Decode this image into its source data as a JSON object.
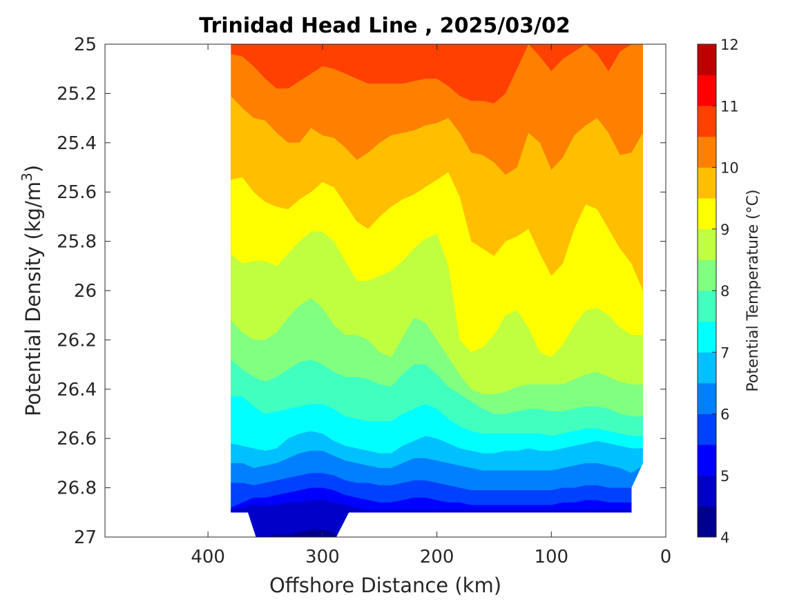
{
  "chart_data": {
    "type": "contour",
    "title": "Trinidad Head Line , 2025/03/02",
    "xlabel": "Offshore Distance (km)",
    "ylabel": "Potential Density (kg/m",
    "ylabel_sup": "3",
    "ylabel_end": ")",
    "xlim": [
      490,
      0
    ],
    "x_reversed": true,
    "ylim": [
      25,
      27
    ],
    "y_reversed": true,
    "xticks": [
      400,
      300,
      200,
      100,
      0
    ],
    "yticks": [
      25,
      25.2,
      25.4,
      25.6,
      25.8,
      26,
      26.2,
      26.4,
      26.6,
      26.8,
      27
    ],
    "xtick_labels": [
      "400",
      "300",
      "200",
      "100",
      "0"
    ],
    "ytick_labels": [
      "25",
      "25.2",
      "25.4",
      "25.6",
      "25.8",
      "26",
      "26.2",
      "26.4",
      "26.6",
      "26.8",
      "27"
    ],
    "colorbar": {
      "label": "Potential Temperature (°C)",
      "range": [
        4,
        12
      ],
      "step": 0.5,
      "tick_values": [
        4,
        5,
        6,
        7,
        8,
        9,
        10,
        11,
        12
      ],
      "tick_labels": [
        "4",
        "5",
        "6",
        "7",
        "8",
        "9",
        "10",
        "11",
        "12"
      ],
      "colors": [
        "#00008f",
        "#0000c8",
        "#0000ff",
        "#0040ff",
        "#0080ff",
        "#00c0ff",
        "#00ffff",
        "#40ffbf",
        "#80ff80",
        "#c0ff40",
        "#ffff00",
        "#ffbf00",
        "#ff8000",
        "#ff4000",
        "#ff0000",
        "#bf0000"
      ]
    },
    "x": [
      380,
      370,
      360,
      350,
      340,
      330,
      320,
      310,
      300,
      290,
      280,
      270,
      260,
      250,
      240,
      230,
      220,
      210,
      200,
      190,
      180,
      170,
      160,
      150,
      140,
      130,
      120,
      110,
      100,
      90,
      80,
      70,
      60,
      50,
      40,
      30,
      20
    ],
    "isotherms": [
      {
        "temp": 10.5,
        "depth": [
          25.04,
          25.05,
          25.09,
          25.14,
          25.18,
          25.18,
          25.15,
          25.12,
          25.09,
          25.1,
          25.12,
          25.14,
          25.16,
          25.16,
          25.16,
          25.16,
          25.15,
          25.14,
          25.14,
          25.17,
          25.21,
          25.23,
          25.23,
          25.24,
          25.2,
          25.1,
          25.0,
          25.05,
          25.11,
          25.06,
          25.03,
          25.0,
          25.04,
          25.11,
          25.03,
          25.0,
          25.0
        ]
      },
      {
        "temp": 10.0,
        "depth": [
          25.21,
          25.26,
          25.3,
          25.31,
          25.36,
          25.4,
          25.4,
          25.34,
          25.37,
          25.38,
          25.42,
          25.47,
          25.44,
          25.4,
          25.37,
          25.36,
          25.35,
          25.33,
          25.32,
          25.3,
          25.36,
          25.44,
          25.45,
          25.48,
          25.53,
          25.5,
          25.36,
          25.4,
          25.51,
          25.46,
          25.37,
          25.33,
          25.3,
          25.36,
          25.45,
          25.44,
          25.36
        ]
      },
      {
        "temp": 9.5,
        "depth": [
          25.55,
          25.54,
          25.6,
          25.64,
          25.66,
          25.67,
          25.63,
          25.6,
          25.56,
          25.58,
          25.65,
          25.72,
          25.75,
          25.7,
          25.66,
          25.63,
          25.61,
          25.58,
          25.55,
          25.52,
          25.62,
          25.8,
          25.83,
          25.86,
          25.8,
          25.78,
          25.75,
          25.85,
          25.94,
          25.89,
          25.75,
          25.65,
          25.67,
          25.75,
          25.83,
          25.89,
          26.0
        ]
      },
      {
        "temp": 9.0,
        "depth": [
          25.85,
          25.89,
          25.88,
          25.88,
          25.9,
          25.85,
          25.8,
          25.76,
          25.76,
          25.8,
          25.88,
          25.96,
          25.96,
          25.94,
          25.92,
          25.88,
          25.83,
          25.79,
          25.77,
          25.9,
          26.2,
          26.25,
          26.23,
          26.18,
          26.1,
          26.08,
          26.15,
          26.25,
          26.27,
          26.22,
          26.14,
          26.08,
          26.07,
          26.1,
          26.15,
          26.18,
          26.18
        ]
      },
      {
        "temp": 8.5,
        "depth": [
          26.12,
          26.17,
          26.2,
          26.2,
          26.17,
          26.11,
          26.06,
          26.03,
          26.07,
          26.14,
          26.18,
          26.18,
          26.2,
          26.25,
          26.27,
          26.19,
          26.11,
          26.13,
          26.2,
          26.27,
          26.34,
          26.4,
          26.42,
          26.42,
          26.41,
          26.39,
          26.38,
          26.38,
          26.38,
          26.38,
          26.36,
          26.34,
          26.33,
          26.35,
          26.37,
          26.38,
          26.38
        ]
      },
      {
        "temp": 8.0,
        "depth": [
          26.28,
          26.32,
          26.35,
          26.37,
          26.35,
          26.32,
          26.29,
          26.28,
          26.3,
          26.33,
          26.35,
          26.35,
          26.36,
          26.38,
          26.39,
          26.34,
          26.3,
          26.3,
          26.34,
          26.39,
          26.42,
          26.45,
          26.48,
          26.5,
          26.5,
          26.49,
          26.48,
          26.48,
          26.49,
          26.49,
          26.48,
          26.47,
          26.47,
          26.48,
          26.5,
          26.51,
          26.51
        ]
      },
      {
        "temp": 7.5,
        "depth": [
          26.43,
          26.43,
          26.47,
          26.5,
          26.49,
          26.48,
          26.47,
          26.46,
          26.46,
          26.48,
          26.51,
          26.52,
          26.53,
          26.53,
          26.53,
          26.5,
          26.48,
          26.46,
          26.48,
          26.52,
          26.55,
          26.57,
          26.58,
          26.58,
          26.58,
          26.58,
          26.58,
          26.58,
          26.59,
          26.58,
          26.57,
          26.56,
          26.56,
          26.57,
          26.58,
          26.59,
          26.59
        ]
      },
      {
        "temp": 7.0,
        "depth": [
          26.62,
          26.63,
          26.64,
          26.65,
          26.64,
          26.6,
          26.58,
          26.57,
          26.58,
          26.61,
          26.63,
          26.64,
          26.65,
          26.66,
          26.66,
          26.63,
          26.61,
          26.59,
          26.6,
          26.62,
          26.64,
          26.65,
          26.66,
          26.66,
          26.65,
          26.65,
          26.64,
          26.65,
          26.65,
          26.64,
          26.63,
          26.62,
          26.61,
          26.62,
          26.63,
          26.64,
          26.64
        ]
      },
      {
        "temp": 6.5,
        "depth": [
          26.7,
          26.7,
          26.72,
          26.71,
          26.7,
          26.68,
          26.66,
          26.65,
          26.65,
          26.67,
          26.69,
          26.7,
          26.71,
          26.72,
          26.72,
          26.7,
          26.68,
          26.68,
          26.69,
          26.7,
          26.71,
          26.72,
          26.73,
          26.73,
          26.73,
          26.73,
          26.73,
          26.73,
          26.73,
          26.72,
          26.71,
          26.7,
          26.7,
          26.71,
          26.72,
          26.74,
          26.71
        ]
      },
      {
        "temp": 6.0,
        "depth": [
          26.78,
          26.78,
          26.79,
          26.78,
          26.77,
          26.76,
          26.75,
          26.74,
          26.74,
          26.75,
          26.77,
          26.78,
          26.78,
          26.79,
          26.79,
          26.78,
          26.77,
          26.77,
          26.78,
          26.79,
          26.8,
          26.81,
          26.81,
          26.81,
          26.81,
          26.81,
          26.81,
          26.81,
          26.81,
          26.8,
          26.8,
          26.79,
          26.79,
          26.8,
          26.8,
          26.8,
          26.8
        ]
      },
      {
        "temp": 5.5,
        "depth": [
          26.88,
          26.86,
          26.84,
          26.84,
          26.83,
          26.82,
          26.81,
          26.8,
          26.8,
          26.81,
          26.83,
          26.84,
          26.85,
          26.86,
          26.86,
          26.85,
          26.84,
          26.84,
          26.85,
          26.86,
          26.86,
          26.87,
          26.87,
          26.87,
          26.87,
          26.87,
          26.87,
          26.87,
          26.87,
          26.86,
          26.86,
          26.85,
          26.85,
          26.86,
          26.86,
          26.86,
          26.86
        ]
      },
      {
        "temp": 5.0,
        "depth": [
          26.89,
          26.88,
          26.87,
          26.87,
          26.87,
          26.86,
          26.86,
          26.85,
          26.85,
          26.86,
          26.87,
          26.88,
          26.89,
          26.89,
          26.89,
          26.89,
          26.89,
          26.89,
          26.89,
          26.89,
          26.89,
          26.89,
          26.89,
          26.89,
          26.89,
          26.89,
          26.89,
          26.89,
          26.89,
          26.89,
          26.89,
          26.89,
          26.89,
          26.89,
          26.89,
          26.89,
          26.89
        ]
      },
      {
        "temp": 4.5,
        "depth": [
          27.1,
          27.1,
          27.1,
          27.0,
          26.99,
          26.99,
          26.98,
          26.97,
          26.97,
          26.98,
          27.1,
          27.1,
          27.1,
          27.1,
          27.1,
          27.1,
          27.1,
          27.1,
          27.1,
          27.1,
          27.1,
          27.1,
          27.1,
          27.1,
          27.1,
          27.1,
          27.1,
          27.1,
          27.1,
          27.1,
          27.1,
          27.1,
          27.1,
          27.1,
          27.1,
          27.1,
          27.1
        ]
      }
    ],
    "outline_km_density": [
      [
        380,
        25
      ],
      [
        20,
        25
      ],
      [
        20,
        26.7
      ],
      [
        30,
        26.8
      ],
      [
        30,
        26.9
      ],
      [
        277,
        26.9
      ],
      [
        288,
        27
      ],
      [
        358,
        27
      ],
      [
        365,
        26.9
      ],
      [
        380,
        26.9
      ]
    ],
    "grid": false
  }
}
